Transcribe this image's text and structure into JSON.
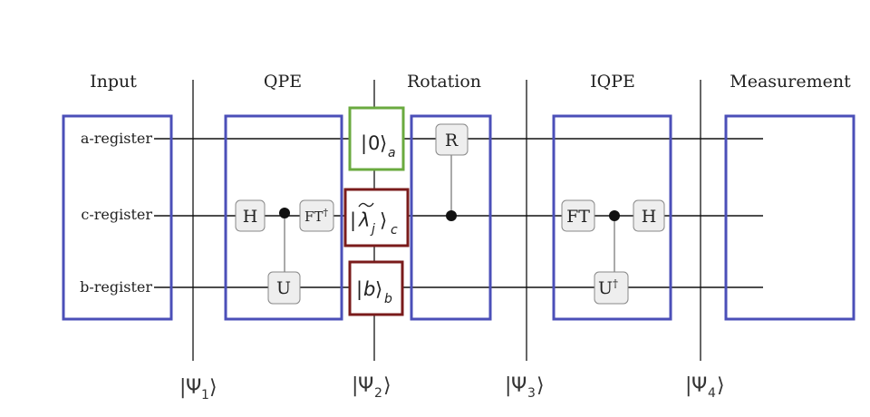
{
  "sections": {
    "input": "Input",
    "qpe": "QPE",
    "rotation": "Rotation",
    "iqpe": "IQPE",
    "measurement": "Measurement"
  },
  "registers": {
    "a": "a-register",
    "c": "c-register",
    "b": "b-register"
  },
  "gates": {
    "qpe_h": "H",
    "qpe_ft": "FT",
    "qpe_ft_dagger": "†",
    "qpe_u": "U",
    "rotation_r": "R",
    "iqpe_ft": "FT",
    "iqpe_h": "H",
    "iqpe_u": "U",
    "iqpe_u_dagger": "†"
  },
  "states": {
    "a_ket": "0",
    "a_sub": "a",
    "c_ket": "λ",
    "c_ket_sub": "j",
    "c_sub": "c",
    "b_ket": "b",
    "b_sub": "b"
  },
  "psi_labels": [
    {
      "symbol": "Ψ",
      "index": "1"
    },
    {
      "symbol": "Ψ",
      "index": "2"
    },
    {
      "symbol": "Ψ",
      "index": "3"
    },
    {
      "symbol": "Ψ",
      "index": "4"
    }
  ],
  "colors": {
    "section_box": "#4b4fb8",
    "ket_a_border": "#6aaa3f",
    "ket_cb_border": "#7a1b1b",
    "gate_fill": "#eeeeee",
    "gate_border": "#888888",
    "wire": "#111111",
    "divider": "#666666"
  }
}
